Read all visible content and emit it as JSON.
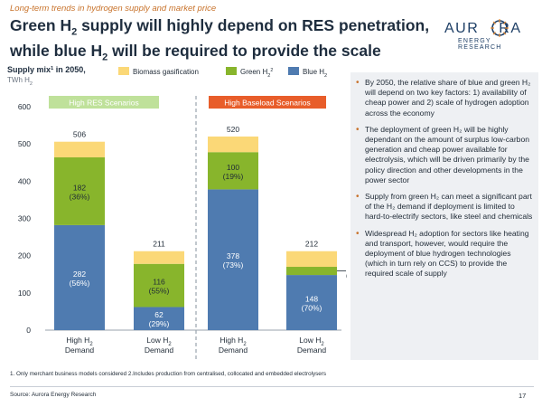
{
  "header": {
    "kicker": "Long-term trends in hydrogen supply and market price",
    "title_line1_a": "Green H",
    "title_line1_sub": "2",
    "title_line1_b": " supply will highly depend on RES penetration,",
    "title_line2_a": "while blue H",
    "title_line2_sub": "2",
    "title_line2_b": " will be required to provide the scale"
  },
  "logo": {
    "word_left": "AUR",
    "word_right": "RA",
    "tagline": "ENERGY RESEARCH",
    "color": "#1e3f66",
    "accent": "#e8892c"
  },
  "chart_data": {
    "type": "bar",
    "stacked": true,
    "ylabel_main": "Supply mix",
    "ylabel_sup": "1",
    "ylabel_suffix": " in 2050,",
    "yunit_main": "TWh H",
    "yunit_sub": "2",
    "ylim": [
      0,
      600
    ],
    "yticks": [
      0,
      100,
      200,
      300,
      400,
      500,
      600
    ],
    "categories": [
      {
        "line1": "High H",
        "sub": "2",
        "line2": "Demand"
      },
      {
        "line1": "Low H",
        "sub": "2",
        "line2": "Demand"
      },
      {
        "line1": "High H",
        "sub": "2",
        "line2": "Demand"
      },
      {
        "line1": "Low H",
        "sub": "2",
        "line2": "Demand"
      }
    ],
    "groups": [
      {
        "label": "High RES Scenarios",
        "color": "#bfe19a",
        "text_color": "#ffffff"
      },
      {
        "label": "High Baseload Scenarios",
        "color": "#e85d2a",
        "text_color": "#ffffff"
      }
    ],
    "legend": [
      {
        "label": "Biomass gasification",
        "sub": "",
        "sup": "",
        "color": "#fbd877"
      },
      {
        "label": "Green H",
        "sub": "2",
        "sup": "2",
        "color": "#88b52c"
      },
      {
        "label": "Blue H",
        "sub": "2",
        "sup": "",
        "color": "#4f7bb0"
      }
    ],
    "series": [
      {
        "name": "Blue H2",
        "color": "#4f7bb0",
        "values": [
          282,
          62,
          378,
          148
        ],
        "pct": [
          "(56%)",
          "(29%)",
          "(73%)",
          "(70%)"
        ],
        "label_color": "#ffffff"
      },
      {
        "name": "Green H2",
        "color": "#88b52c",
        "values": [
          182,
          116,
          100,
          22
        ],
        "pct": [
          "(36%)",
          "(55%)",
          "(19%)",
          "(11%)"
        ],
        "label_color": "#1f2a36"
      },
      {
        "name": "Biomass gasification",
        "color": "#fbd877",
        "values": [
          42,
          34,
          42,
          42
        ],
        "pct": [
          "(8%)",
          "(16%)",
          "(8%)",
          "(20%)"
        ],
        "label_color": "#1f2a36"
      }
    ],
    "totals": [
      506,
      211,
      520,
      212
    ]
  },
  "bullets": [
    "By 2050, the relative share of blue and green H₂ will depend on two key factors: 1) availability of cheap power and 2) scale of hydrogen adoption across the economy",
    "The deployment of green H₂ will be highly dependant on the amount of surplus low-carbon generation and cheap power available for electrolysis, which will be driven primarily by the policy direction and other developments in the power sector",
    "Supply from green H₂ can meet a significant part of the H₂ demand if deployment is limited to hard-to-electrify sectors, like steel and chemicals",
    "Widespread H₂ adoption for sectors like heating and transport, however, would require the deployment of blue hydrogen technologies (which in turn rely on CCS) to provide the required scale of supply"
  ],
  "footer": {
    "footnote": "1. Only merchant business models considered 2.Includes production from centralised, collocated and embedded electrolysers",
    "source": "Source: Aurora Energy Research",
    "page": "17"
  }
}
